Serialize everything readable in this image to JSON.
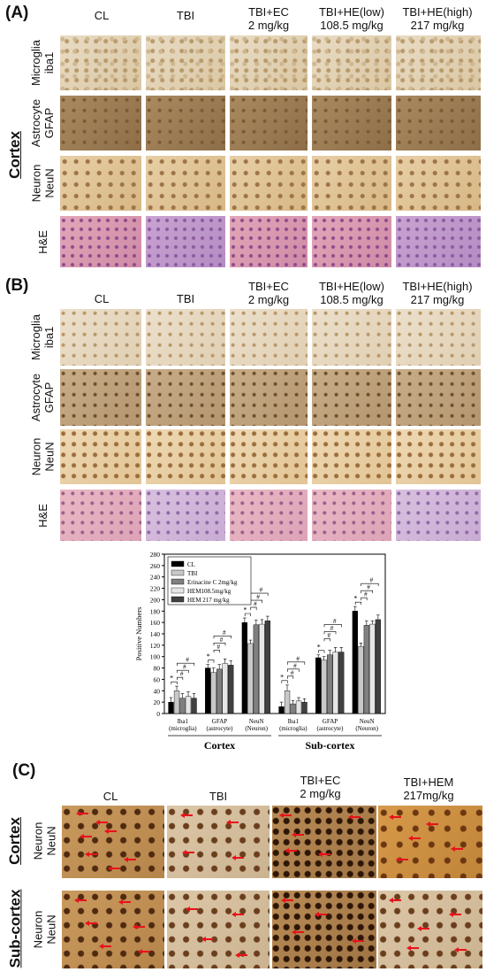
{
  "panels": {
    "a": "(A)",
    "b": "(B)",
    "c": "(C)"
  },
  "columns_ab": [
    [
      "CL",
      ""
    ],
    [
      "TBI",
      ""
    ],
    [
      "TBI+EC",
      "2 mg/kg"
    ],
    [
      "TBI+HE(low)",
      "108.5 mg/kg"
    ],
    [
      "TBI+HE(high)",
      "217 mg/kg"
    ]
  ],
  "rows_ab": [
    [
      "Microglia",
      "iba1"
    ],
    [
      "Astrocyte",
      "GFAP"
    ],
    [
      "Neuron",
      "NeuN"
    ],
    [
      "H&E",
      ""
    ]
  ],
  "region_a": "Cortex",
  "columns_c": [
    [
      "CL",
      ""
    ],
    [
      "TBI",
      ""
    ],
    [
      "TBI+EC",
      "2 mg/kg"
    ],
    [
      "TBI+HEM",
      "217mg/kg"
    ]
  ],
  "rows_c": [
    {
      "region": "Cortex",
      "label": [
        "Neuron",
        "NeuN"
      ]
    },
    {
      "region": "Sub-cortex",
      "label": [
        "Neuron",
        "NeuN"
      ]
    }
  ],
  "chart_data": {
    "type": "bar",
    "ylabel": "Positive Numbers",
    "ylim": [
      0,
      280
    ],
    "yticks": [
      0,
      20,
      40,
      60,
      80,
      100,
      120,
      140,
      160,
      180,
      200,
      220,
      240,
      260,
      280
    ],
    "categories": [
      [
        "Iba1",
        "(microglia)"
      ],
      [
        "GFAP",
        "(astrocyte)"
      ],
      [
        "NeuN",
        "(Neuron)"
      ],
      [
        "Iba1",
        "(microglia)"
      ],
      [
        "GFAP",
        "(astrocyte)"
      ],
      [
        "NeuN",
        "(Neuron)"
      ]
    ],
    "groups": [
      {
        "label": "Cortex",
        "from": 0,
        "to": 2
      },
      {
        "label": "Sub-cortex",
        "from": 3,
        "to": 5
      }
    ],
    "series": [
      {
        "name": "CL",
        "color": "#000000",
        "values": [
          20,
          80,
          160,
          12,
          98,
          180
        ],
        "errors": [
          8,
          6,
          8,
          8,
          5,
          8
        ]
      },
      {
        "name": "TBI",
        "color": "#c8c8c8",
        "values": [
          40,
          72,
          123,
          40,
          94,
          118
        ],
        "errors": [
          8,
          8,
          6,
          10,
          6,
          6
        ]
      },
      {
        "name": "Erinacine C 2mg/kg",
        "color": "#808080",
        "values": [
          27,
          78,
          156,
          17,
          103,
          155
        ],
        "errors": [
          8,
          8,
          8,
          6,
          8,
          8
        ]
      },
      {
        "name": "HEM108.5mg/kg",
        "color": "#e6e6e6",
        "values": [
          30,
          88,
          157,
          22,
          108,
          157
        ],
        "errors": [
          8,
          8,
          8,
          6,
          8,
          6
        ]
      },
      {
        "name": "HEM 217 mg/kg",
        "color": "#404040",
        "values": [
          27,
          85,
          163,
          20,
          108,
          165
        ],
        "errors": [
          8,
          8,
          8,
          6,
          8,
          8
        ]
      }
    ],
    "significance": [
      {
        "category": 0,
        "stars": "*",
        "hashes": 3
      },
      {
        "category": 1,
        "stars": "*",
        "hashes": 3
      },
      {
        "category": 2,
        "stars": "*",
        "hashes": 3
      },
      {
        "category": 3,
        "stars": "*",
        "hashes": 3
      },
      {
        "category": 4,
        "stars": "*",
        "hashes": 3
      },
      {
        "category": 5,
        "stars": "*",
        "hashes": 3
      }
    ],
    "star_symbol": "*",
    "hash_symbol": "#",
    "legend_placement": "top-left"
  }
}
